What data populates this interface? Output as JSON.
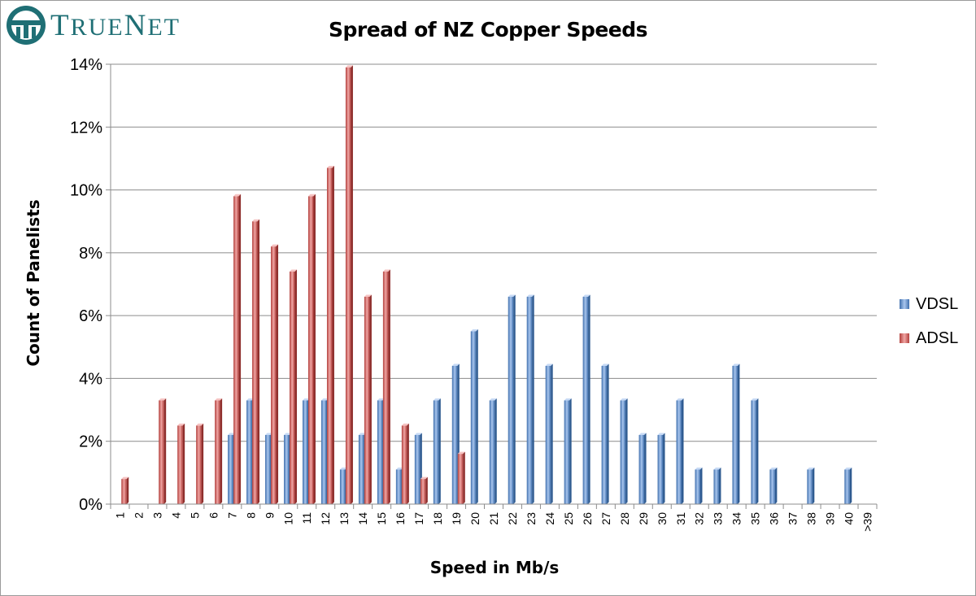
{
  "logo": {
    "text_initial": "T",
    "text_rest": "RUE",
    "text_initial2": "N",
    "text_rest2": "ET"
  },
  "chart_data": {
    "type": "bar",
    "title": "Spread of NZ Copper Speeds",
    "xlabel": "Speed in Mb/s",
    "ylabel": "Count of Panelists",
    "ylim": [
      0,
      14
    ],
    "yticks": [
      "0%",
      "2%",
      "4%",
      "6%",
      "8%",
      "10%",
      "12%",
      "14%"
    ],
    "ytick_values": [
      0,
      2,
      4,
      6,
      8,
      10,
      12,
      14
    ],
    "grid": true,
    "legend_position": "right",
    "categories": [
      "1",
      "2",
      "3",
      "4",
      "5",
      "6",
      "7",
      "8",
      "9",
      "10",
      "11",
      "12",
      "13",
      "14",
      "15",
      "16",
      "17",
      "18",
      "19",
      "20",
      "21",
      "22",
      "23",
      "24",
      "25",
      "26",
      "27",
      "28",
      "29",
      "30",
      "31",
      "32",
      "33",
      "34",
      "35",
      "36",
      "37",
      "38",
      "39",
      "40",
      ">39"
    ],
    "series": [
      {
        "name": "VDSL",
        "color": "#4f81bd",
        "values": [
          0,
          0,
          0,
          0,
          0,
          0,
          2.2,
          3.3,
          2.2,
          2.2,
          3.3,
          3.3,
          1.1,
          2.2,
          3.3,
          1.1,
          2.2,
          3.3,
          4.4,
          5.5,
          3.3,
          6.6,
          6.6,
          4.4,
          3.3,
          6.6,
          4.4,
          3.3,
          2.2,
          2.2,
          3.3,
          1.1,
          1.1,
          4.4,
          3.3,
          1.1,
          0,
          1.1,
          0,
          1.1,
          0
        ]
      },
      {
        "name": "ADSL",
        "color": "#c0504d",
        "values": [
          0.8,
          0,
          3.3,
          2.5,
          2.5,
          3.3,
          9.8,
          9.0,
          8.2,
          7.4,
          9.8,
          10.7,
          13.9,
          6.6,
          7.4,
          2.5,
          0.8,
          0,
          1.6,
          0,
          0,
          0,
          0,
          0,
          0,
          0,
          0,
          0,
          0,
          0,
          0,
          0,
          0,
          0,
          0,
          0,
          0,
          0,
          0,
          0,
          0
        ]
      }
    ]
  }
}
